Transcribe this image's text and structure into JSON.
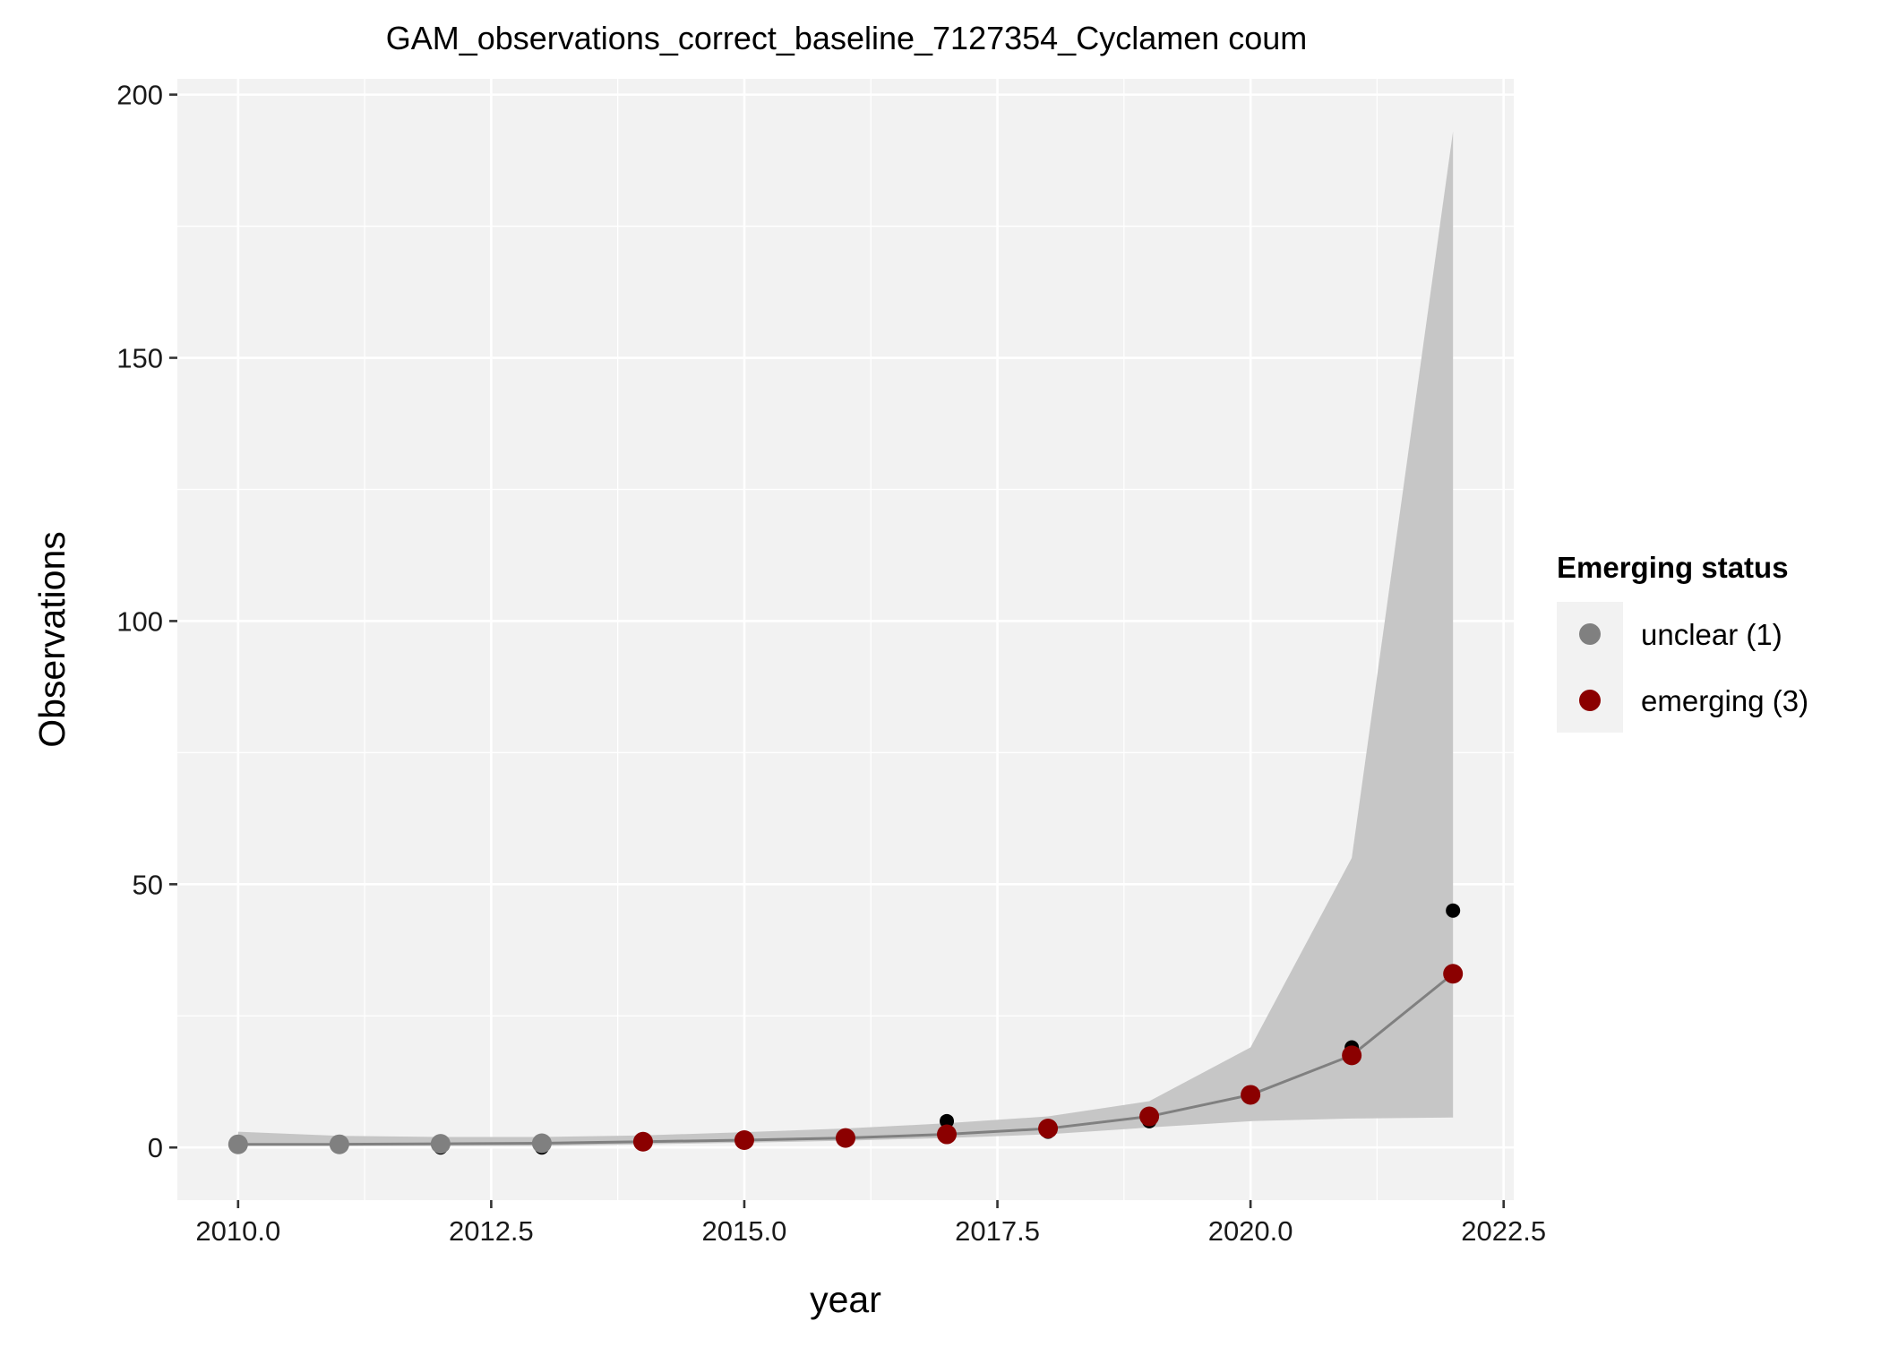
{
  "chart_data": {
    "type": "line",
    "title": "GAM_observations_correct_baseline_7127354_Cyclamen coum",
    "xlabel": "year",
    "ylabel": "Observations",
    "xlim": [
      2009.4,
      2022.6
    ],
    "ylim": [
      -10,
      203
    ],
    "x_ticks": [
      2010.0,
      2012.5,
      2015.0,
      2017.5,
      2020.0,
      2022.5
    ],
    "x_tick_labels": [
      "2010.0",
      "2012.5",
      "2015.0",
      "2017.5",
      "2020.0",
      "2022.5"
    ],
    "y_ticks": [
      0,
      50,
      100,
      150,
      200
    ],
    "y_tick_labels": [
      "0",
      "50",
      "100",
      "150",
      "200"
    ],
    "grid": true,
    "legend": {
      "title": "Emerging status",
      "placement": "right",
      "entries": [
        {
          "label": "unclear (1)",
          "color": "#808080"
        },
        {
          "label": "emerging (3)",
          "color": "#8b0000"
        }
      ]
    },
    "confidence_band": {
      "x": [
        2010,
        2011,
        2012,
        2013,
        2014,
        2015,
        2016,
        2017,
        2018,
        2019,
        2020,
        2021,
        2022
      ],
      "lower": [
        0.3,
        0.3,
        0.3,
        0.3,
        0.6,
        0.9,
        1.3,
        1.8,
        2.5,
        3.8,
        5.0,
        5.5,
        5.7
      ],
      "upper": [
        3.0,
        2.2,
        2.0,
        2.0,
        2.3,
        2.9,
        3.6,
        4.6,
        5.9,
        8.8,
        19.0,
        55.0,
        193.0
      ]
    },
    "fitted_line": {
      "x": [
        2010,
        2011,
        2012,
        2013,
        2014,
        2015,
        2016,
        2017,
        2018,
        2019,
        2020,
        2021,
        2022
      ],
      "y": [
        0.6,
        0.6,
        0.7,
        0.8,
        1.1,
        1.4,
        1.8,
        2.5,
        3.6,
        5.9,
        10.0,
        17.5,
        33.0
      ]
    },
    "observed": {
      "x": [
        2010,
        2011,
        2012,
        2013,
        2014,
        2015,
        2016,
        2017,
        2018,
        2019,
        2020,
        2021,
        2022
      ],
      "y": [
        1,
        1,
        0,
        0,
        1,
        1,
        2,
        5,
        3,
        5,
        10,
        19,
        45
      ]
    },
    "status_points": [
      {
        "x": 2010,
        "y": 0.6,
        "status": "unclear (1)"
      },
      {
        "x": 2011,
        "y": 0.6,
        "status": "unclear (1)"
      },
      {
        "x": 2012,
        "y": 0.7,
        "status": "unclear (1)"
      },
      {
        "x": 2013,
        "y": 0.8,
        "status": "unclear (1)"
      },
      {
        "x": 2014,
        "y": 1.1,
        "status": "emerging (3)"
      },
      {
        "x": 2015,
        "y": 1.4,
        "status": "emerging (3)"
      },
      {
        "x": 2016,
        "y": 1.8,
        "status": "emerging (3)"
      },
      {
        "x": 2017,
        "y": 2.5,
        "status": "emerging (3)"
      },
      {
        "x": 2018,
        "y": 3.6,
        "status": "emerging (3)"
      },
      {
        "x": 2019,
        "y": 5.9,
        "status": "emerging (3)"
      },
      {
        "x": 2020,
        "y": 10.0,
        "status": "emerging (3)"
      },
      {
        "x": 2021,
        "y": 17.5,
        "status": "emerging (3)"
      },
      {
        "x": 2022,
        "y": 33.0,
        "status": "emerging (3)"
      }
    ],
    "colors": {
      "panel_background": "#f2f2f2",
      "grid": "#ffffff",
      "band": "#c6c6c6",
      "line": "#808080",
      "observed_point": "#000000",
      "unclear": "#808080",
      "emerging": "#8b0000"
    }
  }
}
